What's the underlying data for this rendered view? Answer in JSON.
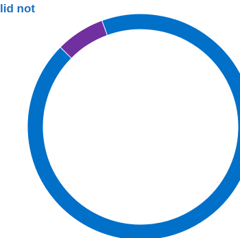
{
  "chart_data": {
    "type": "pie",
    "title": "lid not",
    "style": "donut",
    "categories": [
      "",
      ""
    ],
    "values": [
      93,
      7
    ],
    "colors": [
      "#0070c9",
      "#7030a0"
    ],
    "title_color": "#1f6fbf"
  }
}
